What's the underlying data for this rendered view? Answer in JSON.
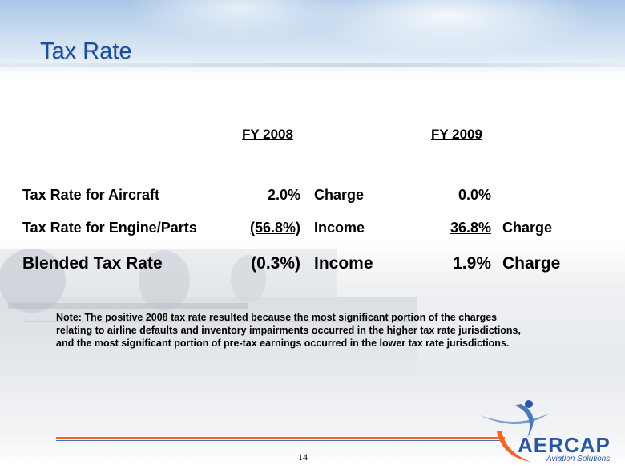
{
  "slide": {
    "title": "Tax Rate",
    "page_number": "14"
  },
  "table": {
    "headers": {
      "fy2008": "FY 2008",
      "fy2009": "FY 2009"
    },
    "rows": [
      {
        "label": "Tax Rate for Aircraft",
        "fy2008_value": "2.0%",
        "fy2008_type": "Charge",
        "fy2009_value": "0.0%",
        "fy2009_type": ""
      },
      {
        "label": "Tax Rate for Engine/Parts",
        "fy2008_value": "(56.8%)",
        "fy2008_type": "Income",
        "fy2009_value": "36.8%",
        "fy2009_type": "Charge"
      },
      {
        "label": "Blended Tax Rate",
        "fy2008_value": "(0.3%)",
        "fy2008_type": "Income",
        "fy2009_value": "1.9%",
        "fy2009_type": "Charge"
      }
    ]
  },
  "note": {
    "line1": "Note: The positive 2008 tax rate resulted because the most significant portion of the charges",
    "line2": "relating to airline defaults and inventory impairments occurred in the higher tax rate jurisdictions,",
    "line3": "and the most significant portion of pre-tax earnings occurred in the lower tax rate jurisdictions."
  },
  "logo": {
    "name": "AERCAP",
    "tagline": "Aviation Solutions",
    "colors": {
      "blue": "#2857a4",
      "orange": "#f26522"
    }
  },
  "colors": {
    "title": "#1b4f9c",
    "footer_line": "#f26522"
  }
}
